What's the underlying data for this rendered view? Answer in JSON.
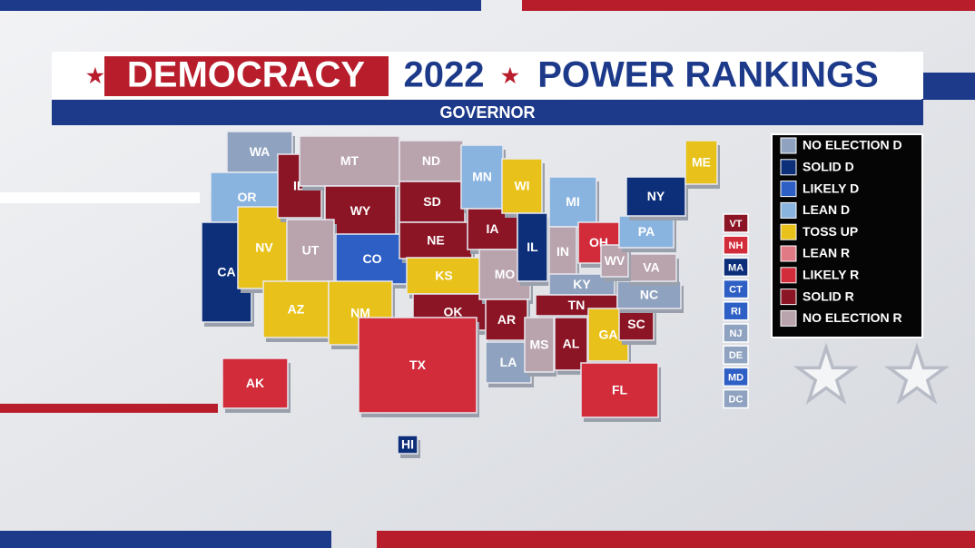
{
  "header": {
    "title_left": "DEMOCRACY",
    "title_year": "2022",
    "title_right": "POWER RANKINGS",
    "subtitle": "GOVERNOR"
  },
  "legend": [
    {
      "label": "NO ELECTION D",
      "color": "#8fa3c0"
    },
    {
      "label": "SOLID D",
      "color": "#0d2f7a"
    },
    {
      "label": "LIKELY D",
      "color": "#2e5fc4"
    },
    {
      "label": "LEAN D",
      "color": "#8ab4e0"
    },
    {
      "label": "TOSS UP",
      "color": "#e8c21a"
    },
    {
      "label": "LEAN R",
      "color": "#e07a85"
    },
    {
      "label": "LIKELY R",
      "color": "#d22b3a"
    },
    {
      "label": "SOLID R",
      "color": "#8b1525"
    },
    {
      "label": "NO ELECTION R",
      "color": "#b9a3ad"
    }
  ],
  "states": [
    {
      "label": "WA",
      "rating": 0
    },
    {
      "label": "OR",
      "rating": 3
    },
    {
      "label": "CA",
      "rating": 1
    },
    {
      "label": "NV",
      "rating": 4
    },
    {
      "label": "ID",
      "rating": 7
    },
    {
      "label": "MT",
      "rating": 8
    },
    {
      "label": "WY",
      "rating": 7
    },
    {
      "label": "UT",
      "rating": 8
    },
    {
      "label": "CO",
      "rating": 2
    },
    {
      "label": "AZ",
      "rating": 4
    },
    {
      "label": "NM",
      "rating": 4
    },
    {
      "label": "ND",
      "rating": 8
    },
    {
      "label": "SD",
      "rating": 7
    },
    {
      "label": "NE",
      "rating": 7
    },
    {
      "label": "KS",
      "rating": 4
    },
    {
      "label": "OK",
      "rating": 7
    },
    {
      "label": "TX",
      "rating": 6
    },
    {
      "label": "MN",
      "rating": 3
    },
    {
      "label": "IA",
      "rating": 7
    },
    {
      "label": "MO",
      "rating": 8
    },
    {
      "label": "AR",
      "rating": 7
    },
    {
      "label": "LA",
      "rating": 0
    },
    {
      "label": "WI",
      "rating": 4
    },
    {
      "label": "IL",
      "rating": 1
    },
    {
      "label": "MI",
      "rating": 3
    },
    {
      "label": "IN",
      "rating": 8
    },
    {
      "label": "OH",
      "rating": 6
    },
    {
      "label": "KY",
      "rating": 0
    },
    {
      "label": "TN",
      "rating": 7
    },
    {
      "label": "MS",
      "rating": 8
    },
    {
      "label": "AL",
      "rating": 7
    },
    {
      "label": "GA",
      "rating": 4
    },
    {
      "label": "FL",
      "rating": 6
    },
    {
      "label": "SC",
      "rating": 7
    },
    {
      "label": "NC",
      "rating": 0
    },
    {
      "label": "VA",
      "rating": 8
    },
    {
      "label": "WV",
      "rating": 8
    },
    {
      "label": "PA",
      "rating": 3
    },
    {
      "label": "NY",
      "rating": 1
    },
    {
      "label": "ME",
      "rating": 4
    },
    {
      "label": "AK",
      "rating": 6
    },
    {
      "label": "HI",
      "rating": 1
    }
  ],
  "small_states": [
    {
      "label": "VT",
      "rating": 7
    },
    {
      "label": "NH",
      "rating": 6
    },
    {
      "label": "MA",
      "rating": 1
    },
    {
      "label": "CT",
      "rating": 2
    },
    {
      "label": "RI",
      "rating": 2
    },
    {
      "label": "NJ",
      "rating": 0
    },
    {
      "label": "DE",
      "rating": 0
    },
    {
      "label": "MD",
      "rating": 2
    },
    {
      "label": "DC",
      "rating": 0
    }
  ]
}
